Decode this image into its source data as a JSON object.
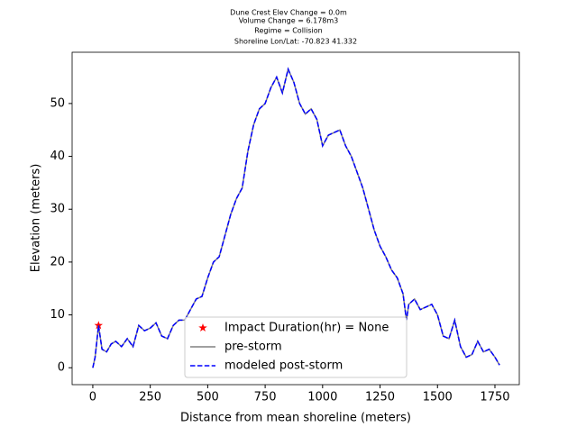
{
  "chart_data": {
    "type": "line",
    "title": [
      "Dune Crest Elev Change = 0.0m",
      "Volume Change = 6.178m3",
      "Regime = Collision",
      "Shoreline Lon/Lat: -70.823 41.332"
    ],
    "xlabel": "Distance from mean shoreline (meters)",
    "ylabel": "Elevation (meters)",
    "x": [
      0,
      10,
      25,
      40,
      60,
      80,
      100,
      125,
      150,
      175,
      200,
      225,
      250,
      275,
      300,
      325,
      350,
      375,
      400,
      425,
      450,
      475,
      500,
      525,
      550,
      575,
      600,
      625,
      650,
      675,
      700,
      725,
      750,
      775,
      800,
      825,
      850,
      875,
      900,
      925,
      950,
      975,
      1000,
      1025,
      1050,
      1075,
      1100,
      1125,
      1150,
      1175,
      1200,
      1225,
      1250,
      1275,
      1300,
      1325,
      1350,
      1365,
      1375,
      1400,
      1425,
      1450,
      1475,
      1500,
      1525,
      1550,
      1575,
      1600,
      1625,
      1650,
      1675,
      1700,
      1725,
      1750,
      1770
    ],
    "series": [
      {
        "name": "Impact Duration(hr) = None",
        "color": "#ff0000",
        "marker": "star",
        "x": [
          25
        ],
        "values": [
          8
        ]
      },
      {
        "name": "pre-storm",
        "color": "#808080",
        "linestyle": "solid",
        "values": [
          0,
          2,
          8,
          3.5,
          3,
          4.5,
          5,
          4,
          5.5,
          4,
          8,
          7,
          7.5,
          8.5,
          6,
          5.5,
          8,
          9,
          9,
          11,
          13,
          13.5,
          17,
          20,
          21,
          25,
          29,
          32,
          34,
          41,
          46,
          49,
          50,
          53,
          55,
          52,
          56.5,
          54,
          50,
          48,
          49,
          47,
          42,
          44,
          44.5,
          45,
          42,
          40,
          37,
          34,
          30,
          26,
          23,
          21,
          18.5,
          17,
          14,
          9,
          12,
          13,
          11,
          11.5,
          12,
          10,
          6,
          5.5,
          9,
          4,
          2,
          2.5,
          5,
          3,
          3.5,
          2,
          0.5
        ]
      },
      {
        "name": "modeled post-storm",
        "color": "#0000ff",
        "linestyle": "dashed",
        "values": [
          0,
          2,
          8,
          3.5,
          3,
          4.5,
          5,
          4,
          5.5,
          4,
          8,
          7,
          7.5,
          8.5,
          6,
          5.5,
          8,
          9,
          9,
          11,
          13,
          13.5,
          17,
          20,
          21,
          25,
          29,
          32,
          34,
          41,
          46,
          49,
          50,
          53,
          55,
          52,
          56.5,
          54,
          50,
          48,
          49,
          47,
          42,
          44,
          44.5,
          45,
          42,
          40,
          37,
          34,
          30,
          26,
          23,
          21,
          18.5,
          17,
          14,
          9,
          12,
          13,
          11,
          11.5,
          12,
          10,
          6,
          5.5,
          9,
          4,
          2,
          2.5,
          5,
          3,
          3.5,
          2,
          0.5
        ]
      }
    ],
    "xlim": [
      -90,
      1856
    ],
    "ylim": [
      -3.2,
      59.7
    ],
    "xticks": [
      0,
      250,
      500,
      750,
      1000,
      1250,
      1500,
      1750
    ],
    "yticks": [
      0,
      10,
      20,
      30,
      40,
      50
    ],
    "legend": "lower center"
  }
}
